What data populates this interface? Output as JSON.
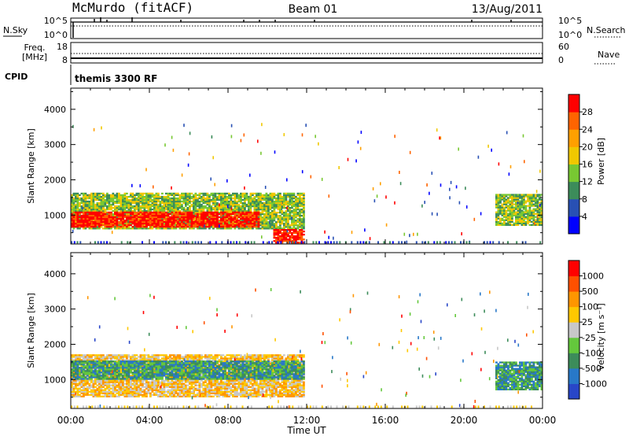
{
  "header": {
    "station": "McMurdo (fitACF)",
    "beam": "Beam 01",
    "date": "13/Aug/2011"
  },
  "noise_panel": {
    "left_label": "N.Sky",
    "left_ticks": [
      "10^5",
      "10^0"
    ],
    "right_ticks": [
      "10^5",
      "10^0"
    ],
    "right_label": "N.Search"
  },
  "freq_panel": {
    "left_label_top": "Freq.",
    "left_label_bottom": "[MHz]",
    "left_ticks": [
      "18",
      "8"
    ],
    "right_ticks": [
      "60",
      "0"
    ],
    "right_label": "Nave"
  },
  "cpid": {
    "label": "CPID",
    "program": "themis 3300 RF"
  },
  "x_axis": {
    "label": "Time UT",
    "ticks": [
      "00:00",
      "04:00",
      "08:00",
      "12:00",
      "16:00",
      "20:00",
      "00:00"
    ]
  },
  "chart_data": [
    {
      "type": "heatmap",
      "title": "Power",
      "ylabel": "Slant Range [km]",
      "xlim_hours": [
        0,
        24
      ],
      "ylim_km": [
        180,
        4600
      ],
      "y_ticks": [
        "1000",
        "2000",
        "3000",
        "4000"
      ],
      "colorbar": {
        "label": "Power [dB]",
        "tick_labels": [
          "4",
          "8",
          "12",
          "16",
          "20",
          "24",
          "28"
        ],
        "colors": [
          "#0000ff",
          "#2850b4",
          "#3c8c5a",
          "#78c832",
          "#f0c800",
          "#ffa000",
          "#ff6400",
          "#ff0000"
        ]
      },
      "regions": [
        {
          "t_start": 0.0,
          "t_end": 11.8,
          "r_min": 600,
          "r_max": 1600,
          "level": "18"
        },
        {
          "t_start": 0.0,
          "t_end": 9.5,
          "r_min": 650,
          "r_max": 1100,
          "level": "28"
        },
        {
          "t_start": 10.3,
          "t_end": 11.8,
          "r_min": 200,
          "r_max": 600,
          "level": "28"
        },
        {
          "t_start": 21.6,
          "t_end": 24.0,
          "r_min": 700,
          "r_max": 1600,
          "level": "14"
        }
      ]
    },
    {
      "type": "heatmap",
      "title": "Velocity",
      "ylabel": "Slant Range [km]",
      "xlim_hours": [
        0,
        24
      ],
      "ylim_km": [
        180,
        4600
      ],
      "y_ticks": [
        "1000",
        "2000",
        "3000",
        "4000"
      ],
      "colorbar": {
        "label": "Velocity [m s⁻¹]",
        "tick_labels": [
          "1000",
          "500",
          "100",
          "25",
          "-25",
          "-100",
          "-500",
          "-1000"
        ],
        "colors": [
          "#2846c8",
          "#2878c8",
          "#3c8c5a",
          "#64c83c",
          "#c8c8c8",
          "#ffc800",
          "#ff9600",
          "#ff5000",
          "#ff0000"
        ]
      },
      "regions": [
        {
          "t_start": 0.0,
          "t_end": 11.8,
          "r_min": 500,
          "r_max": 1700,
          "level": "100"
        },
        {
          "t_start": 0.0,
          "t_end": 11.8,
          "r_min": 1000,
          "r_max": 1500,
          "level": "-100"
        },
        {
          "t_start": 21.6,
          "t_end": 24.0,
          "r_min": 700,
          "r_max": 1500,
          "level": "-100"
        }
      ]
    }
  ]
}
